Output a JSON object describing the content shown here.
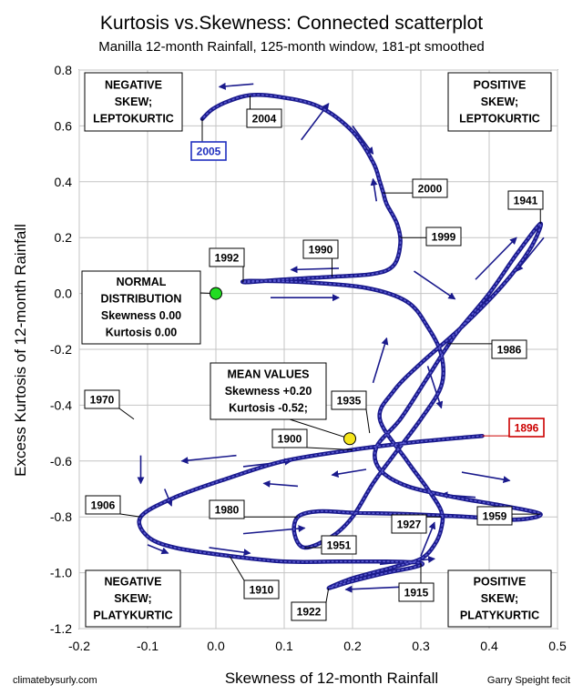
{
  "chart_data": {
    "type": "scatter",
    "title": "Kurtosis vs.Skewness: Connected scatterplot",
    "subtitle": "Manilla 12-month Rainfall, 125-month window, 181-pt smoothed",
    "xlabel": "Skewness of 12-month Rainfall",
    "ylabel": "Excess Kurtosis of 12-month Rainfall",
    "xlim": [
      -0.2,
      0.5
    ],
    "ylim": [
      -1.2,
      0.8
    ],
    "xticks": [
      -0.2,
      -0.1,
      0.0,
      0.1,
      0.2,
      0.3,
      0.4,
      0.5
    ],
    "xtick_labels": [
      "-0.2",
      "-0.1",
      "0.0",
      "0.1",
      "0.2",
      "0.3",
      "0.4",
      "0.5"
    ],
    "yticks": [
      0.8,
      0.6,
      0.4,
      0.2,
      0.0,
      -0.2,
      -0.4,
      -0.6,
      -0.8,
      -1.0,
      -1.2
    ],
    "ytick_labels": [
      "0.8",
      "0.6",
      "0.4",
      "0.2",
      "0.0",
      "-0.2",
      "-0.4",
      "-0.6",
      "-0.8",
      "-1.0",
      "-1.2"
    ],
    "grid": true,
    "series_color": "#1a1a8c",
    "arrow_color": "#1a1a8c",
    "path": [
      [
        0.39,
        -0.51
      ],
      [
        0.3,
        -0.53
      ],
      [
        0.2,
        -0.56
      ],
      [
        0.1,
        -0.6
      ],
      [
        0.02,
        -0.66
      ],
      [
        -0.06,
        -0.73
      ],
      [
        -0.11,
        -0.8
      ],
      [
        -0.1,
        -0.87
      ],
      [
        -0.06,
        -0.91
      ],
      [
        0.02,
        -0.94
      ],
      [
        0.1,
        -0.96
      ],
      [
        0.18,
        -0.96
      ],
      [
        0.25,
        -0.96
      ],
      [
        0.3,
        -0.965
      ],
      [
        0.29,
        -0.98
      ],
      [
        0.25,
        -1.0
      ],
      [
        0.2,
        -1.03
      ],
      [
        0.165,
        -1.055
      ],
      [
        0.2,
        -1.02
      ],
      [
        0.26,
        -0.98
      ],
      [
        0.3,
        -0.95
      ],
      [
        0.32,
        -0.9
      ],
      [
        0.33,
        -0.84
      ],
      [
        0.33,
        -0.78
      ],
      [
        0.31,
        -0.7
      ],
      [
        0.28,
        -0.6
      ],
      [
        0.24,
        -0.45
      ],
      [
        0.26,
        -0.35
      ],
      [
        0.3,
        -0.25
      ],
      [
        0.36,
        -0.12
      ],
      [
        0.42,
        0.03
      ],
      [
        0.46,
        0.16
      ],
      [
        0.475,
        0.25
      ],
      [
        0.44,
        0.14
      ],
      [
        0.4,
        0.0
      ],
      [
        0.35,
        -0.15
      ],
      [
        0.31,
        -0.3
      ],
      [
        0.27,
        -0.45
      ],
      [
        0.235,
        -0.55
      ],
      [
        0.24,
        -0.63
      ],
      [
        0.28,
        -0.69
      ],
      [
        0.35,
        -0.73
      ],
      [
        0.42,
        -0.76
      ],
      [
        0.475,
        -0.79
      ],
      [
        0.44,
        -0.81
      ],
      [
        0.37,
        -0.8
      ],
      [
        0.28,
        -0.79
      ],
      [
        0.2,
        -0.785
      ],
      [
        0.15,
        -0.78
      ],
      [
        0.12,
        -0.8
      ],
      [
        0.115,
        -0.86
      ],
      [
        0.13,
        -0.91
      ],
      [
        0.17,
        -0.87
      ],
      [
        0.2,
        -0.8
      ],
      [
        0.23,
        -0.68
      ],
      [
        0.26,
        -0.58
      ],
      [
        0.3,
        -0.45
      ],
      [
        0.33,
        -0.33
      ],
      [
        0.33,
        -0.22
      ],
      [
        0.31,
        -0.12
      ],
      [
        0.28,
        -0.03
      ],
      [
        0.22,
        0.02
      ],
      [
        0.13,
        0.04
      ],
      [
        0.05,
        0.045
      ],
      [
        0.045,
        0.04
      ],
      [
        0.1,
        0.05
      ],
      [
        0.17,
        0.06
      ],
      [
        0.23,
        0.07
      ],
      [
        0.26,
        0.1
      ],
      [
        0.27,
        0.18
      ],
      [
        0.265,
        0.25
      ],
      [
        0.25,
        0.32
      ],
      [
        0.245,
        0.36
      ],
      [
        0.24,
        0.4
      ],
      [
        0.23,
        0.47
      ],
      [
        0.2,
        0.58
      ],
      [
        0.15,
        0.67
      ],
      [
        0.09,
        0.705
      ],
      [
        0.05,
        0.71
      ],
      [
        0.02,
        0.69
      ],
      [
        -0.005,
        0.66
      ],
      [
        -0.02,
        0.625
      ]
    ],
    "flow_arrows": [
      {
        "from": [
          0.125,
          0.55
        ],
        "to": [
          0.165,
          0.68
        ]
      },
      {
        "from": [
          0.055,
          0.75
        ],
        "to": [
          0.005,
          0.74
        ]
      },
      {
        "from": [
          0.2,
          0.6
        ],
        "to": [
          0.23,
          0.5
        ]
      },
      {
        "from": [
          0.235,
          0.33
        ],
        "to": [
          0.23,
          0.41
        ]
      },
      {
        "from": [
          0.18,
          0.09
        ],
        "to": [
          0.11,
          0.085
        ]
      },
      {
        "from": [
          0.08,
          -0.015
        ],
        "to": [
          0.18,
          -0.015
        ]
      },
      {
        "from": [
          0.29,
          0.08
        ],
        "to": [
          0.35,
          -0.02
        ]
      },
      {
        "from": [
          0.38,
          0.05
        ],
        "to": [
          0.44,
          0.2
        ]
      },
      {
        "from": [
          0.48,
          0.2
        ],
        "to": [
          0.44,
          0.08
        ]
      },
      {
        "from": [
          0.23,
          -0.32
        ],
        "to": [
          0.25,
          -0.16
        ]
      },
      {
        "from": [
          0.31,
          -0.26
        ],
        "to": [
          0.33,
          -0.41
        ]
      },
      {
        "from": [
          0.03,
          -0.58
        ],
        "to": [
          -0.05,
          -0.6
        ]
      },
      {
        "from": [
          -0.11,
          -0.58
        ],
        "to": [
          -0.11,
          -0.68
        ]
      },
      {
        "from": [
          -0.075,
          -0.7
        ],
        "to": [
          -0.065,
          -0.76
        ]
      },
      {
        "from": [
          -0.1,
          -0.9
        ],
        "to": [
          -0.07,
          -0.93
        ]
      },
      {
        "from": [
          -0.01,
          -0.91
        ],
        "to": [
          0.05,
          -0.93
        ]
      },
      {
        "from": [
          0.04,
          -0.62
        ],
        "to": [
          0.11,
          -0.6
        ]
      },
      {
        "from": [
          0.12,
          -0.69
        ],
        "to": [
          0.07,
          -0.68
        ]
      },
      {
        "from": [
          0.04,
          -0.86
        ],
        "to": [
          0.13,
          -0.84
        ]
      },
      {
        "from": [
          0.22,
          -0.63
        ],
        "to": [
          0.17,
          -0.65
        ]
      },
      {
        "from": [
          0.36,
          -0.64
        ],
        "to": [
          0.43,
          -0.67
        ]
      },
      {
        "from": [
          0.38,
          -0.73
        ],
        "to": [
          0.33,
          -0.72
        ]
      },
      {
        "from": [
          0.24,
          -0.97
        ],
        "to": [
          0.32,
          -0.95
        ]
      },
      {
        "from": [
          0.28,
          -1.05
        ],
        "to": [
          0.19,
          -1.06
        ]
      },
      {
        "from": [
          0.3,
          -0.94
        ],
        "to": [
          0.32,
          -0.82
        ]
      }
    ],
    "year_labels": [
      {
        "text": "2005",
        "pt": [
          -0.02,
          0.625
        ],
        "color": "#1f2fbf"
      },
      {
        "text": "2004",
        "pt": [
          0.05,
          0.71
        ],
        "color": "#000000"
      },
      {
        "text": "2000",
        "pt": [
          0.245,
          0.36
        ],
        "color": "#000000"
      },
      {
        "text": "1999",
        "pt": [
          0.27,
          0.2
        ],
        "color": "#000000"
      },
      {
        "text": "1941",
        "pt": [
          0.475,
          0.25
        ],
        "color": "#000000"
      },
      {
        "text": "1992",
        "pt": [
          0.04,
          0.04
        ],
        "color": "#000000"
      },
      {
        "text": "1990",
        "pt": [
          0.17,
          0.06
        ],
        "color": "#000000"
      },
      {
        "text": "1986",
        "pt": [
          0.34,
          -0.18
        ],
        "color": "#000000"
      },
      {
        "text": "1935",
        "pt": [
          0.225,
          -0.5
        ],
        "color": "#000000"
      },
      {
        "text": "1970",
        "pt": [
          -0.12,
          -0.45
        ],
        "color": "#000000"
      },
      {
        "text": "1896",
        "pt": [
          0.39,
          -0.51
        ],
        "color": "#cc0000"
      },
      {
        "text": "1900",
        "pt": [
          0.2,
          -0.56
        ],
        "color": "#000000"
      },
      {
        "text": "1906",
        "pt": [
          -0.11,
          -0.8
        ],
        "color": "#000000"
      },
      {
        "text": "1980",
        "pt": [
          0.12,
          -0.8
        ],
        "color": "#000000"
      },
      {
        "text": "1927",
        "pt": [
          0.33,
          -0.8
        ],
        "color": "#000000"
      },
      {
        "text": "1959",
        "pt": [
          0.475,
          -0.79
        ],
        "color": "#000000"
      },
      {
        "text": "1951",
        "pt": [
          0.13,
          -0.91
        ],
        "color": "#000000"
      },
      {
        "text": "1910",
        "pt": [
          0.02,
          -0.94
        ],
        "color": "#000000"
      },
      {
        "text": "1915",
        "pt": [
          0.3,
          -0.965
        ],
        "color": "#000000"
      },
      {
        "text": "1922",
        "pt": [
          0.165,
          -1.055
        ],
        "color": "#000000"
      }
    ],
    "points": [
      {
        "name": "normal-distribution",
        "x": 0.0,
        "y": 0.0,
        "color": "#22dd22"
      },
      {
        "name": "mean-values",
        "x": 0.196,
        "y": -0.52,
        "color": "#f5e51b"
      }
    ],
    "annotations": [
      {
        "name": "negative-skew-leptokurtic",
        "lines": [
          "NEGATIVE",
          "SKEW;",
          "LEPTOKURTIC"
        ]
      },
      {
        "name": "positive-skew-leptokurtic",
        "lines": [
          "POSITIVE",
          "SKEW;",
          "LEPTOKURTIC"
        ]
      },
      {
        "name": "normal-distribution",
        "lines": [
          "NORMAL",
          "DISTRIBUTION",
          "Skewness 0.00",
          "Kurtosis 0.00"
        ]
      },
      {
        "name": "mean-values",
        "lines": [
          "MEAN VALUES",
          "Skewness +0.20",
          "Kurtosis -0.52;"
        ]
      },
      {
        "name": "negative-skew-platykurtic",
        "lines": [
          "NEGATIVE",
          "SKEW;",
          "PLATYKURTIC"
        ]
      },
      {
        "name": "positive-skew-platykurtic",
        "lines": [
          "POSITIVE",
          "SKEW;",
          "PLATYKURTIC"
        ]
      }
    ],
    "credit_left": "climatebysurly.com",
    "credit_right": "Garry Speight fecit"
  }
}
